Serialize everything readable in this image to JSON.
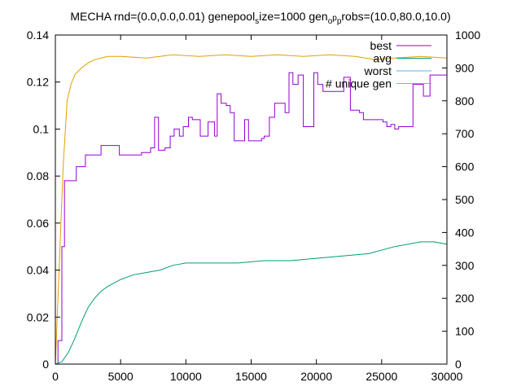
{
  "chart_data": {
    "type": "line",
    "title": "MECHA rnd=(0.0,0.0,0.01) genepool_size=1000 gen_op_probs=(10.0,80.0,10.0)",
    "title_parts": {
      "pre": "MECHA rnd=(0.0,0.0,0.01) genepool",
      "sub1": "s",
      "mid1": "ize=1000 gen",
      "sub2": "o",
      "mid2": "p",
      "sub3": "p",
      "post": "robs=(10.0,80.0,10.0)"
    },
    "xlim": [
      0,
      30000
    ],
    "ylim": [
      0,
      0.14
    ],
    "y2lim": [
      0,
      1000
    ],
    "xticks": [
      "0",
      "5000",
      "10000",
      "15000",
      "20000",
      "25000",
      "30000"
    ],
    "xtick_values": [
      0,
      5000,
      10000,
      15000,
      20000,
      25000,
      30000
    ],
    "yticks": [
      "0",
      "0.02",
      "0.04",
      "0.06",
      "0.08",
      "0.1",
      "0.12",
      "0.14"
    ],
    "ytick_values": [
      0,
      0.02,
      0.04,
      0.06,
      0.08,
      0.1,
      0.12,
      0.14
    ],
    "y2ticks": [
      "0",
      "100",
      "200",
      "300",
      "400",
      "500",
      "600",
      "700",
      "800",
      "900",
      "1000"
    ],
    "y2tick_values": [
      0,
      100,
      200,
      300,
      400,
      500,
      600,
      700,
      800,
      900,
      1000
    ],
    "legend_position": "top-right",
    "series": [
      {
        "name": "best",
        "color": "#9400d3",
        "axis": "left",
        "step": true,
        "points": [
          [
            0,
            0
          ],
          [
            200,
            0.01
          ],
          [
            500,
            0.05
          ],
          [
            700,
            0.078
          ],
          [
            1500,
            0.078
          ],
          [
            1600,
            0.084
          ],
          [
            2200,
            0.084
          ],
          [
            2300,
            0.089
          ],
          [
            3400,
            0.089
          ],
          [
            3500,
            0.093
          ],
          [
            4800,
            0.093
          ],
          [
            4900,
            0.089
          ],
          [
            6500,
            0.089
          ],
          [
            6600,
            0.09
          ],
          [
            7200,
            0.09
          ],
          [
            7300,
            0.092
          ],
          [
            7500,
            0.092
          ],
          [
            7600,
            0.105
          ],
          [
            7800,
            0.105
          ],
          [
            7900,
            0.091
          ],
          [
            8300,
            0.091
          ],
          [
            8400,
            0.092
          ],
          [
            8700,
            0.092
          ],
          [
            8800,
            0.097
          ],
          [
            9000,
            0.097
          ],
          [
            9100,
            0.1
          ],
          [
            9400,
            0.1
          ],
          [
            9500,
            0.097
          ],
          [
            9700,
            0.097
          ],
          [
            9800,
            0.101
          ],
          [
            10100,
            0.101
          ],
          [
            10200,
            0.105
          ],
          [
            10400,
            0.105
          ],
          [
            10500,
            0.104
          ],
          [
            11000,
            0.104
          ],
          [
            11100,
            0.097
          ],
          [
            11600,
            0.097
          ],
          [
            11700,
            0.103
          ],
          [
            12100,
            0.103
          ],
          [
            12200,
            0.097
          ],
          [
            12300,
            0.097
          ],
          [
            12400,
            0.115
          ],
          [
            12600,
            0.115
          ],
          [
            12700,
            0.111
          ],
          [
            13000,
            0.111
          ],
          [
            13100,
            0.11
          ],
          [
            13300,
            0.11
          ],
          [
            13400,
            0.107
          ],
          [
            13600,
            0.107
          ],
          [
            13700,
            0.095
          ],
          [
            14400,
            0.095
          ],
          [
            14500,
            0.104
          ],
          [
            14700,
            0.104
          ],
          [
            14800,
            0.095
          ],
          [
            15700,
            0.095
          ],
          [
            15800,
            0.096
          ],
          [
            15900,
            0.096
          ],
          [
            16000,
            0.097
          ],
          [
            16300,
            0.097
          ],
          [
            16400,
            0.105
          ],
          [
            16700,
            0.105
          ],
          [
            16800,
            0.111
          ],
          [
            17500,
            0.111
          ],
          [
            17600,
            0.107
          ],
          [
            17800,
            0.107
          ],
          [
            17900,
            0.124
          ],
          [
            18100,
            0.124
          ],
          [
            18200,
            0.119
          ],
          [
            18500,
            0.119
          ],
          [
            18600,
            0.123
          ],
          [
            18900,
            0.123
          ],
          [
            19000,
            0.101
          ],
          [
            19700,
            0.101
          ],
          [
            19800,
            0.124
          ],
          [
            20000,
            0.124
          ],
          [
            20100,
            0.119
          ],
          [
            20400,
            0.119
          ],
          [
            20500,
            0.116
          ],
          [
            22000,
            0.116
          ],
          [
            22100,
            0.122
          ],
          [
            22500,
            0.122
          ],
          [
            22600,
            0.108
          ],
          [
            23200,
            0.108
          ],
          [
            23300,
            0.107
          ],
          [
            23500,
            0.107
          ],
          [
            23600,
            0.104
          ],
          [
            25000,
            0.104
          ],
          [
            25100,
            0.103
          ],
          [
            25300,
            0.103
          ],
          [
            25400,
            0.101
          ],
          [
            25600,
            0.101
          ],
          [
            25700,
            0.102
          ],
          [
            25900,
            0.102
          ],
          [
            26000,
            0.1
          ],
          [
            26200,
            0.1
          ],
          [
            26300,
            0.101
          ],
          [
            27300,
            0.101
          ],
          [
            27400,
            0.119
          ],
          [
            28100,
            0.119
          ],
          [
            28200,
            0.114
          ],
          [
            28600,
            0.114
          ],
          [
            28700,
            0.123
          ],
          [
            30000,
            0.123
          ]
        ]
      },
      {
        "name": "avg",
        "color": "#009e73",
        "axis": "left",
        "step": false,
        "points": [
          [
            0,
            0
          ],
          [
            500,
            0.001
          ],
          [
            1000,
            0.005
          ],
          [
            1500,
            0.011
          ],
          [
            2000,
            0.018
          ],
          [
            2500,
            0.024
          ],
          [
            3000,
            0.028
          ],
          [
            3500,
            0.031
          ],
          [
            4000,
            0.033
          ],
          [
            5000,
            0.036
          ],
          [
            6000,
            0.038
          ],
          [
            7000,
            0.039
          ],
          [
            8000,
            0.04
          ],
          [
            9000,
            0.042
          ],
          [
            10000,
            0.043
          ],
          [
            12000,
            0.043
          ],
          [
            14000,
            0.043
          ],
          [
            16000,
            0.044
          ],
          [
            18000,
            0.044
          ],
          [
            20000,
            0.045
          ],
          [
            22000,
            0.046
          ],
          [
            24000,
            0.047
          ],
          [
            26000,
            0.05
          ],
          [
            28000,
            0.052
          ],
          [
            29000,
            0.052
          ],
          [
            30000,
            0.051
          ]
        ]
      },
      {
        "name": "worst",
        "color": "#56b4e9",
        "axis": "left",
        "step": false,
        "points": [
          [
            0,
            0
          ],
          [
            30000,
            0
          ]
        ]
      },
      {
        "name": "# unique gen",
        "color": "#e69f00",
        "axis": "right",
        "step": false,
        "points": [
          [
            0,
            0
          ],
          [
            300,
            300
          ],
          [
            600,
            600
          ],
          [
            900,
            800
          ],
          [
            1200,
            850
          ],
          [
            1500,
            880
          ],
          [
            2000,
            900
          ],
          [
            2500,
            915
          ],
          [
            3000,
            925
          ],
          [
            4000,
            935
          ],
          [
            5000,
            935
          ],
          [
            7000,
            930
          ],
          [
            9000,
            940
          ],
          [
            11000,
            935
          ],
          [
            13000,
            940
          ],
          [
            15000,
            935
          ],
          [
            17000,
            940
          ],
          [
            19000,
            935
          ],
          [
            21000,
            940
          ],
          [
            23000,
            935
          ],
          [
            24500,
            925
          ],
          [
            26000,
            930
          ],
          [
            28000,
            935
          ],
          [
            30000,
            930
          ]
        ]
      }
    ]
  }
}
